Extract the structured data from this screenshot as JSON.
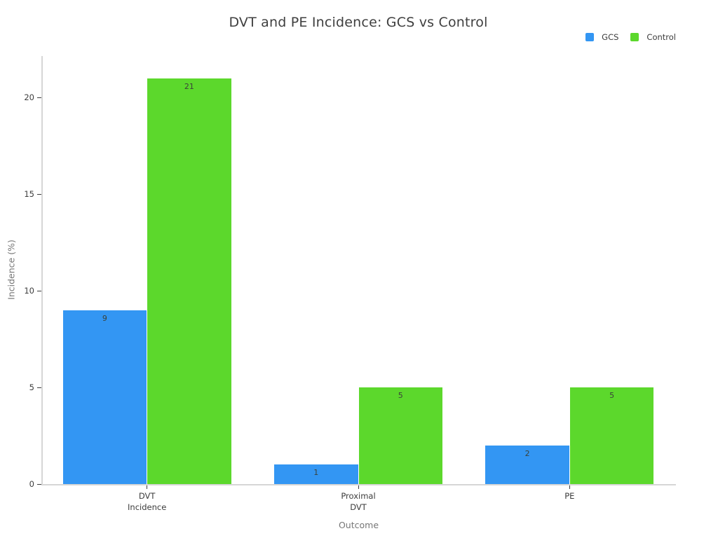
{
  "chart_data": {
    "type": "bar",
    "title": "DVT and PE Incidence: GCS vs Control",
    "xlabel": "Outcome",
    "ylabel": "Incidence (%)",
    "categories": [
      "DVT\nIncidence",
      "Proximal\nDVT",
      "PE"
    ],
    "series": [
      {
        "name": "GCS",
        "color": "#3396f3",
        "values": [
          9,
          1,
          2
        ]
      },
      {
        "name": "Control",
        "color": "#5cd82c",
        "values": [
          21,
          5,
          5
        ]
      }
    ],
    "bar_value_labels": [
      [
        9,
        1,
        2
      ],
      [
        21,
        5,
        5
      ]
    ],
    "yticks": [
      0,
      5,
      10,
      15,
      20
    ],
    "ylim": [
      0,
      22.15
    ],
    "grid": false,
    "legend_position": "top-right",
    "colors": {
      "gcs": "#3396f3",
      "control": "#5cd82c",
      "axis_line": "#d6d6d6",
      "tick_text": "#3c3c3c",
      "axis_title_text": "#767676",
      "title_text": "#3f3f3f"
    }
  }
}
